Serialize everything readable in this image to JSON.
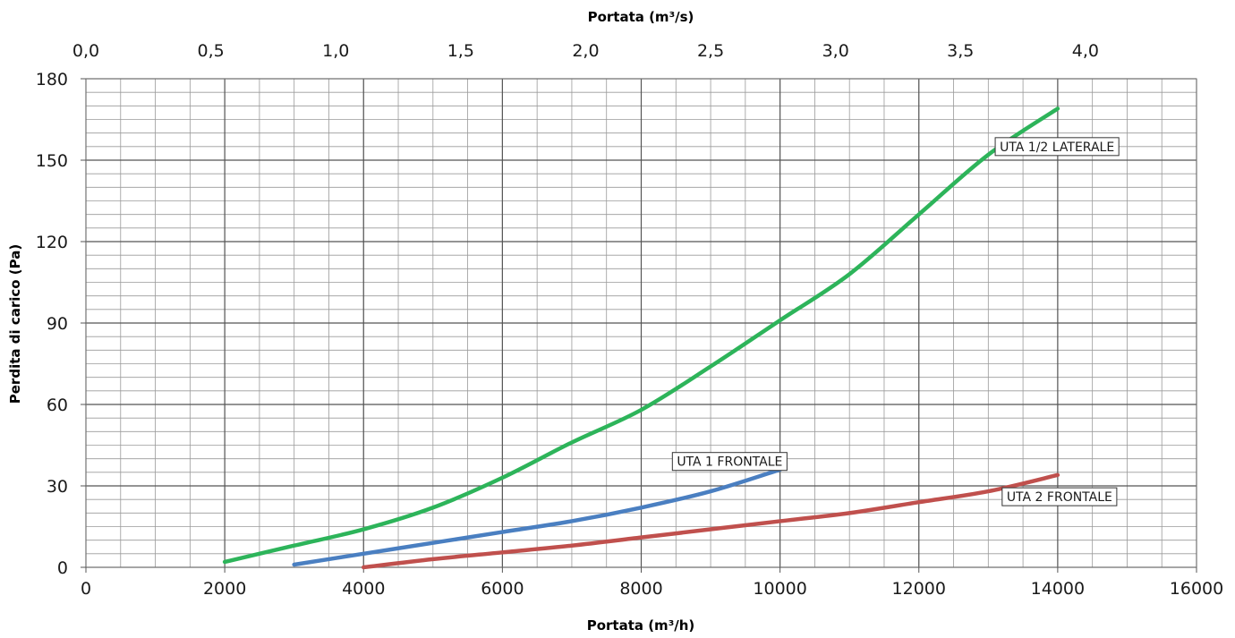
{
  "chart_data": {
    "type": "line",
    "title": "",
    "xlabel": "Portata (m³/h)",
    "ylabel": "Perdita di carico (Pa)",
    "secondary_xlabel": "Portata (m³/s)",
    "xlim": [
      0,
      16000
    ],
    "ylim": [
      0,
      180
    ],
    "x_ticks": [
      0,
      2000,
      4000,
      6000,
      8000,
      10000,
      12000,
      14000,
      16000
    ],
    "y_ticks": [
      0,
      30,
      60,
      90,
      120,
      150,
      180
    ],
    "secondary_x_ticks": [
      "0,0",
      "0,5",
      "1,0",
      "1,5",
      "2,0",
      "2,5",
      "3,0",
      "3,5",
      "4,0"
    ],
    "grid": true,
    "legend": "inline labels near curves",
    "series": [
      {
        "name": "UTA 1/2 LATERALE",
        "color": "#2db45a",
        "x": [
          2000,
          3000,
          4000,
          5000,
          6000,
          7000,
          8000,
          9000,
          10000,
          11000,
          12000,
          13000,
          14000
        ],
        "y": [
          2,
          8,
          14,
          22,
          33,
          46,
          58,
          74,
          91,
          108,
          130,
          152,
          169
        ]
      },
      {
        "name": "UTA 1 FRONTALE",
        "color": "#4a7fc1",
        "x": [
          3000,
          4000,
          5000,
          6000,
          7000,
          8000,
          9000,
          10000
        ],
        "y": [
          1,
          5,
          9,
          13,
          17,
          22,
          28,
          36
        ]
      },
      {
        "name": "UTA 2 FRONTALE",
        "color": "#c0504d",
        "x": [
          4000,
          5000,
          6000,
          7000,
          8000,
          9000,
          10000,
          11000,
          12000,
          13000,
          14000
        ],
        "y": [
          0,
          3,
          5.5,
          8,
          11,
          14,
          17,
          20,
          24,
          28,
          34
        ]
      }
    ]
  }
}
